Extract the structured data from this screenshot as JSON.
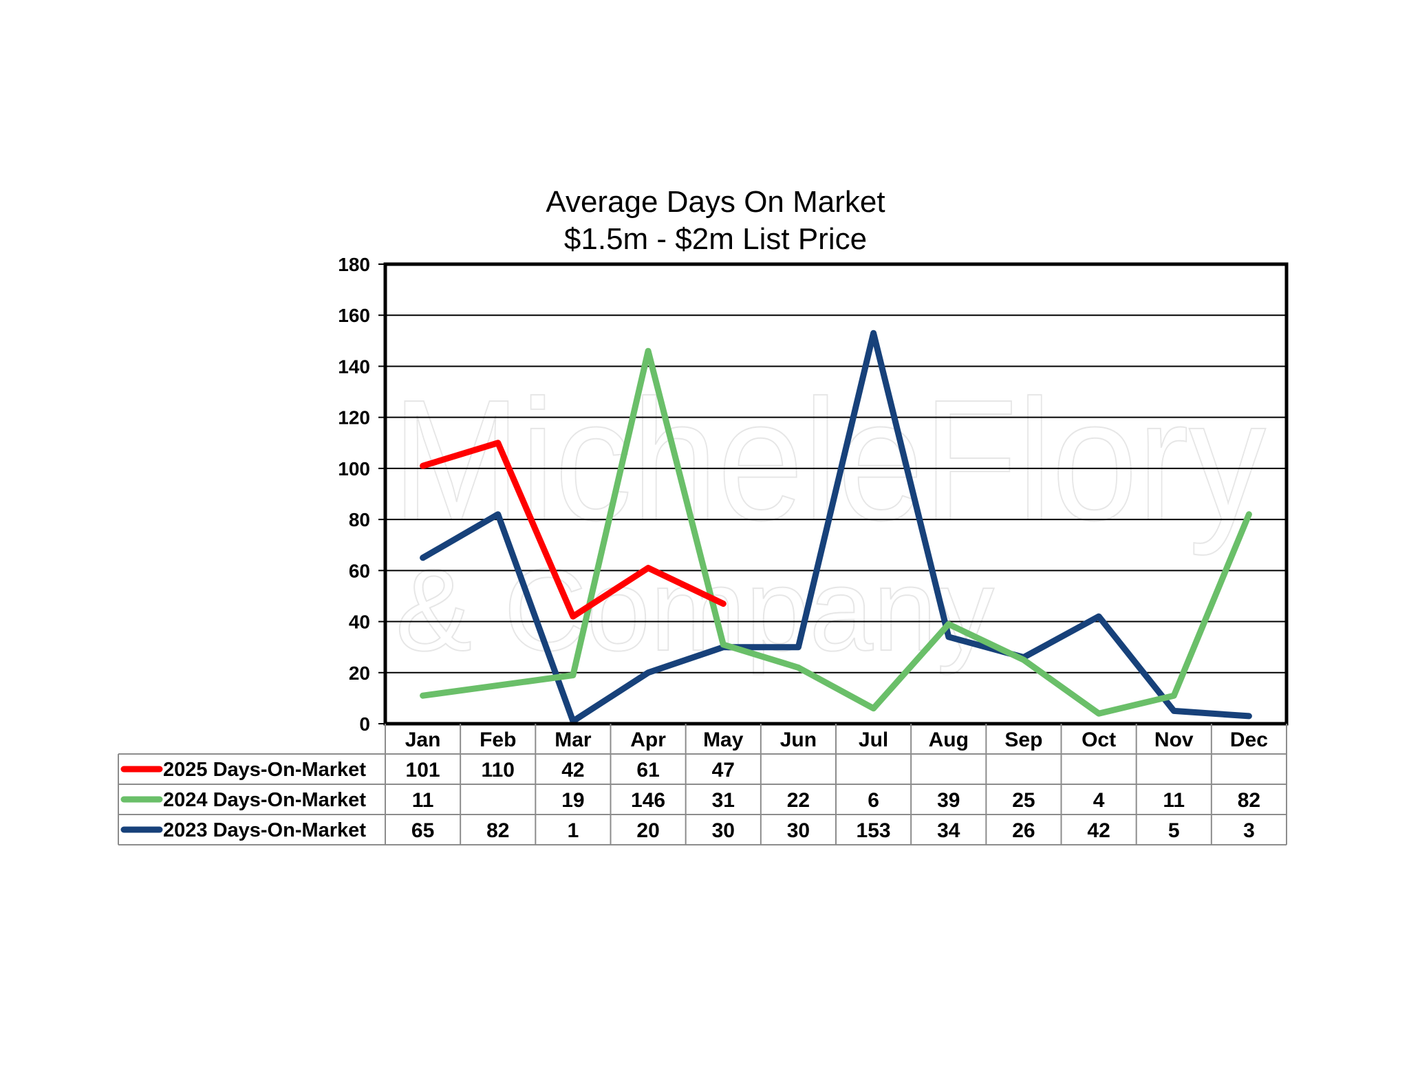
{
  "chart_data": {
    "type": "line",
    "title": "Average Days On Market",
    "subtitle": "$1.5m - $2m List Price",
    "watermark": [
      "MicheleFlory",
      "& Company"
    ],
    "categories": [
      "Jan",
      "Feb",
      "Mar",
      "Apr",
      "May",
      "Jun",
      "Jul",
      "Aug",
      "Sep",
      "Oct",
      "Nov",
      "Dec"
    ],
    "ylim": [
      0,
      180
    ],
    "yticks": [
      0,
      20,
      40,
      60,
      80,
      100,
      120,
      140,
      160,
      180
    ],
    "grid": true,
    "legend": "data-table-bottom",
    "series": [
      {
        "name": "2025 Days-On-Market",
        "color": "#ff0000",
        "values": [
          101,
          110,
          42,
          61,
          47,
          null,
          null,
          null,
          null,
          null,
          null,
          null
        ]
      },
      {
        "name": "2024 Days-On-Market",
        "color": "#6abf69",
        "values": [
          11,
          null,
          19,
          146,
          31,
          22,
          6,
          39,
          25,
          4,
          11,
          82
        ]
      },
      {
        "name": "2023 Days-On-Market",
        "color": "#17417a",
        "values": [
          65,
          82,
          1,
          20,
          30,
          30,
          153,
          34,
          26,
          42,
          5,
          3
        ]
      }
    ]
  }
}
